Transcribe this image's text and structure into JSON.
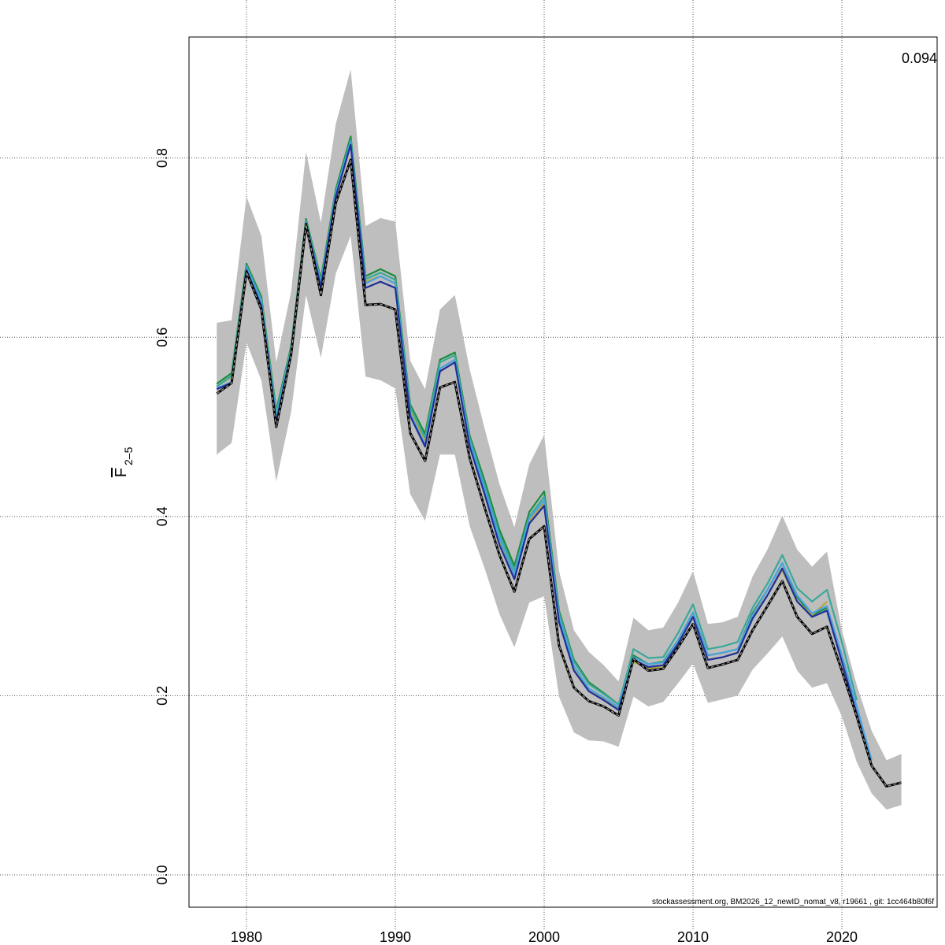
{
  "chart_data": {
    "type": "line",
    "y_label": "F",
    "y_label_sub": "2–5",
    "annotation": "0.094",
    "footer": "stockassessment.org, BM2026_12_newID_nomat_v8, r19661 , git: 1cc464b80f6f",
    "x": [
      1978,
      1979,
      1980,
      1981,
      1982,
      1983,
      1984,
      1985,
      1986,
      1987,
      1988,
      1989,
      1990,
      1991,
      1992,
      1993,
      1994,
      1995,
      1996,
      1997,
      1998,
      1999,
      2000,
      2001,
      2002,
      2003,
      2004,
      2005,
      2006,
      2007,
      2008,
      2009,
      2010,
      2011,
      2012,
      2013,
      2014,
      2015,
      2016,
      2017,
      2018,
      2019,
      2020,
      2021,
      2022,
      2023,
      2024
    ],
    "xlim": [
      1976.14,
      2026.4
    ],
    "ylim": [
      -0.036,
      0.935
    ],
    "xticks": [
      1980,
      1990,
      2000,
      2010,
      2020
    ],
    "yticks": [
      {
        "value": 0,
        "label": "0.0"
      },
      0.2,
      0.4,
      0.6,
      0.8
    ],
    "grid": true,
    "band": {
      "color": "#bebebe",
      "upper": [
        0.616,
        0.619,
        0.757,
        0.713,
        0.572,
        0.651,
        0.807,
        0.728,
        0.838,
        0.899,
        0.724,
        0.733,
        0.729,
        0.574,
        0.542,
        0.631,
        0.647,
        0.564,
        0.498,
        0.436,
        0.388,
        0.458,
        0.491,
        0.339,
        0.273,
        0.249,
        0.234,
        0.216,
        0.287,
        0.273,
        0.276,
        0.304,
        0.339,
        0.28,
        0.282,
        0.288,
        0.333,
        0.363,
        0.401,
        0.363,
        0.344,
        0.361,
        0.273,
        0.212,
        0.161,
        0.128,
        0.135
      ],
      "lower": [
        0.469,
        0.482,
        0.594,
        0.552,
        0.439,
        0.517,
        0.647,
        0.577,
        0.671,
        0.713,
        0.556,
        0.552,
        0.543,
        0.425,
        0.395,
        0.469,
        0.469,
        0.389,
        0.342,
        0.291,
        0.254,
        0.304,
        0.311,
        0.199,
        0.159,
        0.15,
        0.149,
        0.143,
        0.199,
        0.188,
        0.193,
        0.214,
        0.236,
        0.192,
        0.196,
        0.2,
        0.229,
        0.247,
        0.266,
        0.228,
        0.209,
        0.214,
        0.177,
        0.126,
        0.091,
        0.073,
        0.078
      ]
    },
    "series": [
      {
        "color": "#1a8c3a",
        "values": [
          0.548,
          0.56,
          0.682,
          0.645,
          0.518,
          0.59,
          0.732,
          0.665,
          0.765,
          0.824,
          0.668,
          0.676,
          0.668,
          0.525,
          0.492,
          0.575,
          0.583,
          0.49,
          0.44,
          0.385,
          0.345,
          0.405,
          0.428,
          0.295,
          0.24,
          0.215,
          0.203,
          0.19,
          0.245,
          0.235,
          0.238,
          0.262,
          0.293,
          0.245,
          0.248,
          0.252,
          0.292,
          0.318,
          0.348,
          0.31,
          0.29,
          0.298,
          null,
          null,
          null,
          null,
          null
        ]
      },
      {
        "color": "#b5a642",
        "values": [
          0.545,
          0.556,
          0.678,
          0.64,
          0.515,
          0.585,
          0.728,
          0.66,
          0.76,
          0.818,
          0.662,
          0.668,
          0.66,
          0.518,
          0.485,
          0.565,
          0.575,
          0.48,
          0.425,
          0.37,
          0.333,
          0.395,
          0.415,
          0.285,
          0.23,
          0.205,
          0.197,
          0.186,
          0.238,
          0.23,
          0.233,
          0.258,
          0.288,
          0.24,
          0.243,
          0.248,
          0.288,
          0.312,
          0.34,
          0.305,
          0.29,
          0.305,
          null,
          null,
          null,
          null,
          null
        ]
      },
      {
        "color": "#3aa89a",
        "values": [
          0.545,
          0.557,
          0.68,
          0.642,
          0.515,
          0.588,
          0.73,
          0.662,
          0.762,
          0.82,
          0.665,
          0.672,
          0.664,
          0.522,
          0.488,
          0.572,
          0.58,
          0.487,
          0.435,
          0.38,
          0.34,
          0.4,
          0.422,
          0.292,
          0.238,
          0.213,
          0.202,
          0.19,
          0.252,
          0.242,
          0.243,
          0.27,
          0.302,
          0.252,
          0.255,
          0.26,
          0.298,
          0.325,
          0.357,
          0.32,
          0.305,
          0.318,
          0.26,
          0.195,
          null,
          null,
          null
        ]
      },
      {
        "color": "#4aa3df",
        "values": [
          0.543,
          0.55,
          0.677,
          0.64,
          0.51,
          0.585,
          0.728,
          0.66,
          0.76,
          0.818,
          0.66,
          0.668,
          0.66,
          0.515,
          0.48,
          0.565,
          0.575,
          0.483,
          0.43,
          0.375,
          0.335,
          0.398,
          0.418,
          0.288,
          0.233,
          0.208,
          0.198,
          0.187,
          0.243,
          0.235,
          0.237,
          0.262,
          0.293,
          0.245,
          0.248,
          0.252,
          0.29,
          0.318,
          0.348,
          0.312,
          0.292,
          0.3,
          0.245,
          0.188,
          0.128,
          null,
          null
        ]
      },
      {
        "color": "#1f2f9a",
        "values": [
          0.542,
          0.549,
          0.675,
          0.635,
          0.505,
          0.583,
          0.727,
          0.656,
          0.757,
          0.815,
          0.655,
          0.662,
          0.655,
          0.512,
          0.478,
          0.562,
          0.572,
          0.478,
          0.425,
          0.368,
          0.33,
          0.392,
          0.412,
          0.282,
          0.228,
          0.205,
          0.195,
          0.184,
          0.24,
          0.232,
          0.234,
          0.258,
          0.288,
          0.24,
          0.243,
          0.248,
          0.286,
          0.312,
          0.342,
          0.305,
          0.288,
          0.295,
          0.238,
          0.18,
          0.122,
          0.098,
          null
        ]
      },
      {
        "color": "#000000",
        "dashed": true,
        "values": [
          0.537,
          0.549,
          0.673,
          0.631,
          0.5,
          0.581,
          0.726,
          0.647,
          0.75,
          0.798,
          0.636,
          0.637,
          0.631,
          0.493,
          0.462,
          0.544,
          0.55,
          0.465,
          0.41,
          0.357,
          0.316,
          0.375,
          0.389,
          0.256,
          0.209,
          0.194,
          0.188,
          0.178,
          0.241,
          0.228,
          0.23,
          0.254,
          0.28,
          0.231,
          0.235,
          0.24,
          0.273,
          0.3,
          0.328,
          0.288,
          0.269,
          0.277,
          0.228,
          0.177,
          0.122,
          0.099,
          0.103
        ]
      }
    ]
  }
}
